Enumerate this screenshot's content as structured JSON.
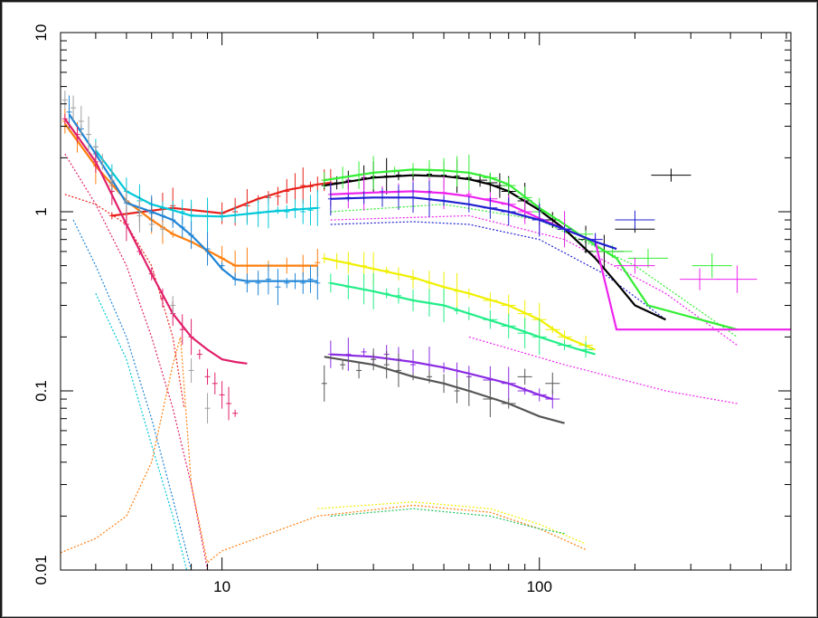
{
  "chart_data": {
    "type": "scatter",
    "title": "",
    "xlabel": "",
    "ylabel": "",
    "xscale": "log",
    "yscale": "log",
    "xlim": [
      3.1,
      620
    ],
    "ylim": [
      0.01,
      10
    ],
    "x_tick_labels": [
      {
        "value": 10,
        "label": "10"
      },
      {
        "value": 100,
        "label": "100"
      }
    ],
    "y_tick_labels": [
      {
        "value": 0.01,
        "label": "0.01"
      },
      {
        "value": 0.1,
        "label": "0.1"
      },
      {
        "value": 1,
        "label": "1"
      },
      {
        "value": 10,
        "label": "10"
      }
    ],
    "grid": false,
    "legend": "none",
    "series": [
      {
        "color": "#e8201a",
        "kind": "data",
        "x": [
          4.5,
          5,
          5.5,
          6,
          6.5,
          7,
          8,
          9,
          10,
          11,
          12,
          13,
          14,
          15,
          16,
          17,
          18,
          19,
          20,
          21,
          22
        ],
        "y": [
          0.95,
          0.97,
          1.0,
          1.02,
          1.05,
          1.08,
          1.02,
          1.0,
          0.98,
          1.0,
          1.08,
          1.18,
          1.2,
          1.22,
          1.3,
          1.35,
          1.4,
          1.38,
          1.42,
          1.5,
          1.45
        ]
      },
      {
        "color": "#e8201a",
        "kind": "model",
        "x": [
          4.5,
          7,
          10,
          13,
          16,
          20,
          22
        ],
        "y": [
          0.95,
          1.05,
          0.98,
          1.18,
          1.32,
          1.42,
          1.45
        ]
      },
      {
        "color": "#00c8d8",
        "kind": "data",
        "x": [
          4,
          4.5,
          5,
          5.5,
          6,
          6.5,
          7,
          7.5,
          8,
          9,
          10,
          11,
          12,
          13,
          14,
          15,
          16,
          17,
          18,
          19,
          20
        ],
        "y": [
          2.3,
          1.6,
          1.3,
          1.15,
          1.1,
          1.05,
          1.02,
          1.0,
          0.96,
          0.95,
          0.95,
          0.96,
          0.97,
          0.98,
          1.0,
          1.02,
          1.0,
          1.04,
          1.0,
          1.02,
          1.05
        ]
      },
      {
        "color": "#00c8d8",
        "kind": "model",
        "x": [
          4,
          5,
          6,
          7,
          8,
          10,
          14,
          20
        ],
        "y": [
          2.2,
          1.3,
          1.1,
          1.02,
          0.95,
          0.94,
          1.0,
          1.05
        ]
      },
      {
        "color": "#ff7f0e",
        "kind": "data",
        "x": [
          3.2,
          3.5,
          4,
          4.5,
          5,
          5.5,
          6,
          6.5,
          7,
          8,
          9,
          10,
          11,
          12,
          14,
          16,
          18,
          20
        ],
        "y": [
          3.2,
          2.6,
          1.8,
          1.4,
          1.15,
          1.0,
          0.9,
          0.82,
          0.75,
          0.68,
          0.6,
          0.55,
          0.5,
          0.5,
          0.5,
          0.5,
          0.5,
          0.52
        ]
      },
      {
        "color": "#ff7f0e",
        "kind": "model",
        "x": [
          3.2,
          4,
          5,
          6,
          7,
          8,
          10,
          11,
          12,
          20
        ],
        "y": [
          3.1,
          1.8,
          1.15,
          0.9,
          0.75,
          0.68,
          0.55,
          0.5,
          0.5,
          0.5
        ]
      },
      {
        "color": "#1f84d6",
        "kind": "data",
        "x": [
          3.3,
          3.6,
          4,
          4.5,
          5,
          5.5,
          6,
          6.5,
          7,
          7.5,
          8,
          9,
          10,
          11,
          12,
          13,
          14,
          15,
          16,
          17,
          18,
          19,
          20
        ],
        "y": [
          3.6,
          2.9,
          2.1,
          1.45,
          1.12,
          1.0,
          0.98,
          0.95,
          0.9,
          0.82,
          0.74,
          0.62,
          0.5,
          0.42,
          0.4,
          0.4,
          0.42,
          0.38,
          0.4,
          0.41,
          0.4,
          0.42,
          0.4
        ]
      },
      {
        "color": "#1f84d6",
        "kind": "model",
        "x": [
          3.3,
          4,
          5,
          6,
          7,
          8,
          9,
          10,
          11,
          12,
          20
        ],
        "y": [
          3.5,
          2.1,
          1.12,
          1.0,
          0.9,
          0.74,
          0.6,
          0.48,
          0.42,
          0.41,
          0.41
        ]
      },
      {
        "color": "#e0206a",
        "kind": "data",
        "x": [
          3.2,
          3.5,
          4,
          4.5,
          5,
          5.5,
          6,
          6.5,
          7,
          7.5,
          8,
          8.5,
          9,
          9.5,
          10,
          10.5,
          11
        ],
        "y": [
          3.3,
          2.7,
          1.9,
          1.3,
          0.85,
          0.6,
          0.45,
          0.33,
          0.27,
          0.22,
          0.2,
          0.16,
          0.12,
          0.11,
          0.095,
          0.085,
          0.075
        ]
      },
      {
        "color": "#e0206a",
        "kind": "model",
        "x": [
          3.2,
          4,
          5,
          6,
          7,
          8,
          9,
          10,
          11,
          12
        ],
        "y": [
          3.3,
          1.9,
          0.85,
          0.45,
          0.27,
          0.2,
          0.17,
          0.15,
          0.145,
          0.142
        ]
      },
      {
        "color": "#a0a0a0",
        "kind": "data",
        "x": [
          3.2,
          3.4,
          3.6,
          3.8,
          4,
          4.2,
          4.5,
          5,
          5.5,
          6,
          6.5,
          7,
          8,
          9
        ],
        "y": [
          4.2,
          3.8,
          3.2,
          2.7,
          2.3,
          1.9,
          1.5,
          1.15,
          0.95,
          0.85,
          0.8,
          0.3,
          0.13,
          0.08
        ]
      },
      {
        "color": "#000000",
        "kind": "data",
        "x": [
          21,
          23,
          25,
          28,
          30,
          33,
          36,
          40,
          45,
          50,
          55,
          60,
          65,
          70,
          75,
          80,
          90,
          100,
          110,
          120,
          140,
          160,
          200,
          260
        ],
        "y": [
          1.4,
          1.45,
          1.5,
          1.55,
          1.57,
          1.58,
          1.6,
          1.6,
          1.62,
          1.6,
          1.58,
          1.55,
          1.5,
          1.45,
          1.4,
          1.3,
          1.15,
          1.0,
          0.9,
          0.8,
          0.7,
          0.6,
          0.8,
          1.6
        ]
      },
      {
        "color": "#000000",
        "kind": "model",
        "x": [
          21,
          30,
          40,
          50,
          60,
          70,
          80,
          100,
          120,
          150,
          175,
          200,
          250
        ],
        "y": [
          1.4,
          1.55,
          1.6,
          1.58,
          1.52,
          1.42,
          1.3,
          1.02,
          0.8,
          0.55,
          0.4,
          0.3,
          0.25
        ]
      },
      {
        "color": "#33ee33",
        "kind": "data",
        "x": [
          21,
          24,
          27,
          30,
          35,
          40,
          45,
          50,
          55,
          60,
          70,
          80,
          90,
          100,
          120,
          140,
          170,
          220,
          350
        ],
        "y": [
          1.5,
          1.55,
          1.6,
          1.65,
          1.7,
          1.72,
          1.72,
          1.7,
          1.68,
          1.65,
          1.55,
          1.4,
          1.2,
          1.0,
          0.8,
          0.75,
          0.6,
          0.55,
          0.5
        ]
      },
      {
        "color": "#33ee33",
        "kind": "model",
        "x": [
          21,
          30,
          40,
          50,
          60,
          70,
          80,
          100,
          120,
          150,
          175,
          220,
          420
        ],
        "y": [
          1.5,
          1.65,
          1.72,
          1.7,
          1.65,
          1.55,
          1.42,
          1.05,
          0.85,
          0.65,
          0.55,
          0.3,
          0.22
        ]
      },
      {
        "color": "#ee22ee",
        "kind": "data",
        "x": [
          22,
          25,
          28,
          32,
          36,
          40,
          45,
          50,
          60,
          70,
          80,
          90,
          100,
          120,
          150,
          200,
          320,
          420
        ],
        "y": [
          1.25,
          1.27,
          1.28,
          1.3,
          1.3,
          1.3,
          1.3,
          1.28,
          1.25,
          1.18,
          1.1,
          1.0,
          0.9,
          0.8,
          0.7,
          0.5,
          0.42,
          0.42
        ]
      },
      {
        "color": "#ee22ee",
        "kind": "model",
        "x": [
          22,
          30,
          40,
          50,
          60,
          80,
          100,
          120,
          150,
          175,
          620
        ],
        "y": [
          1.25,
          1.28,
          1.3,
          1.27,
          1.22,
          1.1,
          0.92,
          0.8,
          0.68,
          0.22,
          0.22
        ]
      },
      {
        "color": "#2020d0",
        "kind": "data",
        "x": [
          22,
          25,
          28,
          32,
          36,
          40,
          45,
          50,
          60,
          70,
          80,
          100,
          120,
          150,
          200
        ],
        "y": [
          1.18,
          1.2,
          1.2,
          1.2,
          1.2,
          1.2,
          1.18,
          1.15,
          1.1,
          1.05,
          1.0,
          0.9,
          0.8,
          0.7,
          0.9
        ]
      },
      {
        "color": "#2020d0",
        "kind": "model",
        "x": [
          22,
          30,
          40,
          50,
          60,
          80,
          100,
          120,
          150,
          175
        ],
        "y": [
          1.18,
          1.2,
          1.2,
          1.15,
          1.1,
          1.0,
          0.9,
          0.8,
          0.68,
          0.62
        ]
      },
      {
        "color": "#f0f000",
        "kind": "data",
        "x": [
          21,
          23,
          25,
          28,
          30,
          33,
          36,
          40,
          45,
          50,
          55,
          60,
          70,
          80,
          90,
          100,
          110,
          120,
          140
        ],
        "y": [
          0.55,
          0.53,
          0.52,
          0.5,
          0.48,
          0.47,
          0.45,
          0.42,
          0.4,
          0.38,
          0.36,
          0.35,
          0.32,
          0.3,
          0.27,
          0.25,
          0.22,
          0.2,
          0.18
        ]
      },
      {
        "color": "#f0f000",
        "kind": "model",
        "x": [
          21,
          30,
          40,
          50,
          60,
          80,
          100,
          120,
          150
        ],
        "y": [
          0.55,
          0.48,
          0.43,
          0.38,
          0.35,
          0.3,
          0.25,
          0.2,
          0.17
        ]
      },
      {
        "color": "#22ee88",
        "kind": "data",
        "x": [
          22,
          25,
          28,
          30,
          33,
          36,
          40,
          45,
          50,
          55,
          60,
          70,
          80,
          90,
          100,
          120,
          140
        ],
        "y": [
          0.4,
          0.38,
          0.37,
          0.36,
          0.35,
          0.34,
          0.32,
          0.31,
          0.3,
          0.28,
          0.27,
          0.25,
          0.23,
          0.21,
          0.2,
          0.18,
          0.17
        ]
      },
      {
        "color": "#22ee88",
        "kind": "model",
        "x": [
          22,
          30,
          40,
          50,
          60,
          80,
          100,
          120,
          150
        ],
        "y": [
          0.4,
          0.36,
          0.32,
          0.3,
          0.27,
          0.23,
          0.2,
          0.18,
          0.16
        ]
      },
      {
        "color": "#8a2be2",
        "kind": "data",
        "x": [
          22,
          25,
          28,
          30,
          33,
          36,
          40,
          45,
          50,
          55,
          60,
          70,
          80,
          90,
          100,
          110
        ],
        "y": [
          0.16,
          0.16,
          0.165,
          0.15,
          0.16,
          0.15,
          0.14,
          0.14,
          0.135,
          0.13,
          0.12,
          0.115,
          0.11,
          0.1,
          0.095,
          0.09
        ]
      },
      {
        "color": "#8a2be2",
        "kind": "model",
        "x": [
          22,
          30,
          40,
          50,
          60,
          80,
          100,
          110
        ],
        "y": [
          0.16,
          0.155,
          0.145,
          0.135,
          0.125,
          0.11,
          0.095,
          0.09
        ]
      },
      {
        "color": "#555555",
        "kind": "data",
        "x": [
          21,
          24,
          27,
          30,
          33,
          36,
          40,
          45,
          50,
          55,
          60,
          70,
          80,
          90,
          110
        ],
        "y": [
          0.11,
          0.14,
          0.13,
          0.15,
          0.14,
          0.13,
          0.12,
          0.12,
          0.11,
          0.1,
          0.1,
          0.09,
          0.085,
          0.12,
          0.11
        ]
      },
      {
        "color": "#555555",
        "kind": "model",
        "x": [
          21,
          30,
          40,
          50,
          60,
          80,
          100,
          120
        ],
        "y": [
          0.155,
          0.14,
          0.12,
          0.11,
          0.1,
          0.085,
          0.072,
          0.066
        ]
      }
    ]
  }
}
